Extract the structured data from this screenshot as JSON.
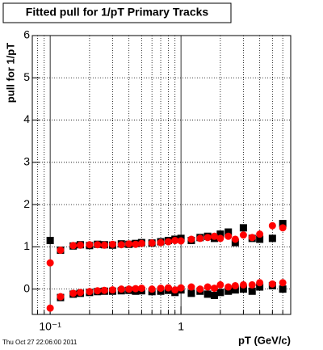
{
  "chart_data": {
    "type": "scatter",
    "title": "Fitted pull for 1/pT  Primary Tracks",
    "y_label": "pull for 1/pT",
    "x_label": "pT (GeV/c)",
    "timestamp": "Thu Oct 27 22:06:00 2011",
    "log_x": true,
    "grid": true,
    "xlim": [
      0.073,
      6.9
    ],
    "ylim": [
      -0.6,
      6
    ],
    "xticks": [
      {
        "value": 0.1,
        "label": "10⁻¹"
      },
      1
    ],
    "xminor_ticks": [
      0.08,
      0.09,
      0.2,
      0.3,
      0.4,
      0.5,
      0.6,
      0.7,
      0.8,
      0.9,
      2,
      3,
      4,
      5,
      6
    ],
    "yticks": [
      0,
      1,
      2,
      3,
      4,
      5,
      6
    ],
    "x": [
      0.1,
      0.12,
      0.15,
      0.17,
      0.2,
      0.23,
      0.26,
      0.3,
      0.35,
      0.4,
      0.45,
      0.5,
      0.6,
      0.7,
      0.8,
      0.9,
      1.0,
      1.2,
      1.4,
      1.6,
      1.8,
      2.0,
      2.3,
      2.6,
      3.0,
      3.5,
      4.0,
      5.0,
      6.0
    ],
    "series": [
      {
        "color": "#000000",
        "marker": "square",
        "values": [
          1.15,
          0.92,
          1.02,
          1.05,
          1.03,
          1.06,
          1.05,
          1.04,
          1.07,
          1.06,
          1.08,
          1.1,
          1.09,
          1.12,
          1.15,
          1.18,
          1.2,
          1.15,
          1.22,
          1.25,
          1.2,
          1.3,
          1.35,
          1.1,
          1.45,
          1.2,
          1.18,
          1.2,
          1.55
        ]
      },
      {
        "color": "#ff0000",
        "marker": "circle",
        "values": [
          0.62,
          0.92,
          1.03,
          1.04,
          1.05,
          1.05,
          1.04,
          1.06,
          1.05,
          1.07,
          1.06,
          1.08,
          1.09,
          1.1,
          1.12,
          1.15,
          1.14,
          1.18,
          1.2,
          1.22,
          1.25,
          1.2,
          1.25,
          1.18,
          1.28,
          1.22,
          1.3,
          1.5,
          1.45
        ]
      },
      {
        "color": "#000000",
        "marker": "square",
        "values": [
          null,
          -0.2,
          -0.12,
          -0.1,
          -0.08,
          -0.06,
          -0.05,
          -0.05,
          -0.04,
          -0.03,
          -0.05,
          -0.04,
          -0.06,
          -0.05,
          -0.03,
          -0.08,
          -0.02,
          -0.1,
          -0.05,
          -0.12,
          -0.15,
          -0.08,
          -0.05,
          -0.02,
          0,
          -0.05,
          0.05,
          0.08,
          0
        ]
      },
      {
        "color": "#ff0000",
        "marker": "circle",
        "values": [
          -0.45,
          -0.18,
          -0.1,
          -0.08,
          -0.06,
          -0.04,
          -0.03,
          -0.02,
          0,
          0,
          0.01,
          0.02,
          0,
          0.02,
          0.03,
          -0.02,
          0.03,
          0.05,
          0,
          0.05,
          0.02,
          0.1,
          0.05,
          0.08,
          0.1,
          0.1,
          0.15,
          0.12,
          0.15
        ]
      }
    ]
  }
}
